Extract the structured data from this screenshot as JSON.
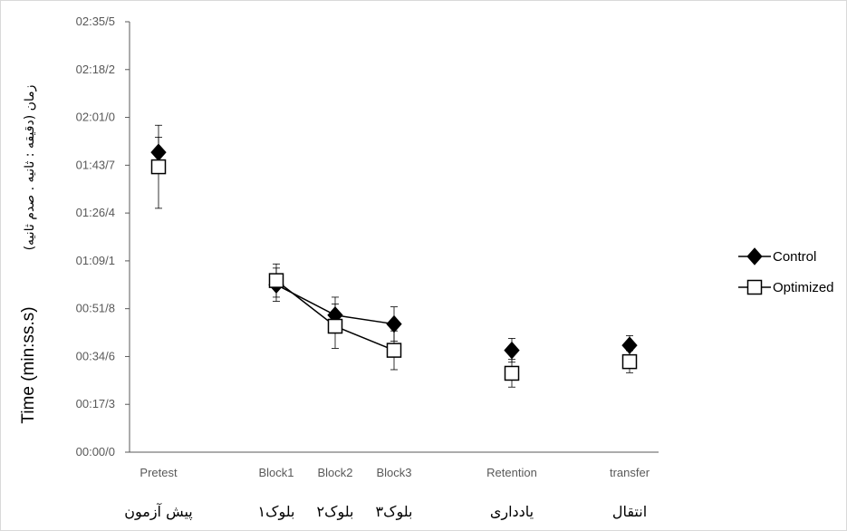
{
  "chart_data": {
    "type": "line",
    "ylabel_en": "Time  (min:ss.s)",
    "ylabel_fa": "زمان (دقیقه : ثانیه . صدم ثانیه)",
    "y_ticks": [
      "00:00/0",
      "00:17/3",
      "00:34/6",
      "00:51/8",
      "01:09/1",
      "01:26/4",
      "01:43/7",
      "02:01/0",
      "02:18/2",
      "02:35/5"
    ],
    "ylim": [
      0,
      155.5
    ],
    "categories": [
      "Pretest",
      "Block1",
      "Block2",
      "Block3",
      "Retention",
      "transfer"
    ],
    "categories_fa": [
      "پیش آزمون",
      "بلوک۱",
      "بلوک۲",
      "بلوک۳",
      "یادداری",
      "انتقال"
    ],
    "series": [
      {
        "name": "Control",
        "marker": "diamond",
        "values": [
          108.3,
          60.5,
          49.5,
          46.3,
          36.8,
          38.6
        ],
        "error": [
          5.5,
          6.0,
          6.5,
          6.2,
          4.3,
          3.5
        ]
      },
      {
        "name": "Optimized",
        "marker": "square",
        "values": [
          103.1,
          62.0,
          45.5,
          36.8,
          28.5,
          32.7
        ],
        "error": [
          15.0,
          6.0,
          8.0,
          7.0,
          5.0,
          4.0
        ]
      }
    ],
    "connected_categories": [
      "Block1",
      "Block2",
      "Block3"
    ],
    "legend_position": "right",
    "grid": false
  }
}
